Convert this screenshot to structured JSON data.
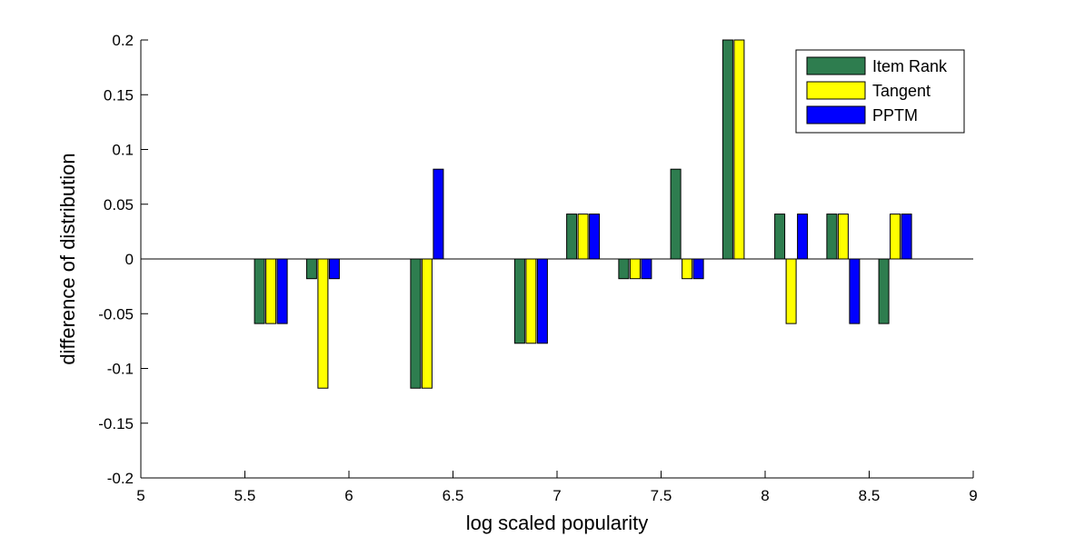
{
  "chart_data": {
    "type": "bar",
    "xlabel": "log scaled popularity",
    "ylabel": "difference of distribution",
    "xlim": [
      5,
      9
    ],
    "ylim": [
      -0.2,
      0.2
    ],
    "xticks": [
      5,
      5.5,
      6,
      6.5,
      7,
      7.5,
      8,
      8.5,
      9
    ],
    "xtick_labels": [
      "5",
      "5.5",
      "6",
      "6.5",
      "7",
      "7.5",
      "8",
      "8.5",
      "9"
    ],
    "yticks": [
      0.2,
      0.15,
      0.1,
      0.05,
      0,
      -0.05,
      -0.1,
      -0.15,
      -0.2
    ],
    "ytick_labels": [
      "0.2",
      "0.15",
      "0.1",
      "0.05",
      "0",
      "-0.05",
      "-0.1",
      "-0.15",
      "-0.2"
    ],
    "legend_position": "top-right",
    "group_centers": [
      5.625,
      5.875,
      6.375,
      6.875,
      7.125,
      7.375,
      7.625,
      7.875,
      8.125,
      8.375,
      8.625
    ],
    "series": [
      {
        "name": "Item Rank",
        "color": "#2e7d4f",
        "values": [
          -0.059,
          -0.018,
          -0.118,
          -0.077,
          0.041,
          -0.018,
          0.082,
          0.2,
          0.041,
          0.041,
          -0.059
        ]
      },
      {
        "name": "Tangent",
        "color": "#ffff00",
        "values": [
          -0.059,
          -0.118,
          -0.118,
          -0.077,
          0.041,
          -0.018,
          -0.018,
          0.2,
          -0.059,
          0.041,
          0.041
        ]
      },
      {
        "name": "PPTM",
        "color": "#0000ff",
        "values": [
          -0.059,
          -0.018,
          0.082,
          -0.077,
          0.041,
          -0.018,
          -0.018,
          0,
          0.041,
          -0.059,
          0.041
        ]
      }
    ]
  }
}
